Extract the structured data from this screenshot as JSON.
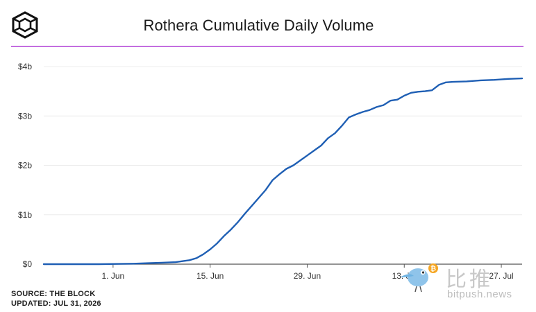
{
  "header": {
    "title": "Rothera Cumulative Daily Volume"
  },
  "colors": {
    "line": "#1f5fb4",
    "accent_rule": "#c36ee0",
    "grid": "#ececec",
    "axis": "#555555",
    "text": "#333333"
  },
  "footer": {
    "source": "SOURCE: THE BLOCK",
    "updated": "UPDATED: JUL 31, 2026"
  },
  "watermark": {
    "chinese": "比推",
    "site": "bitpush.news"
  },
  "chart_data": {
    "type": "line",
    "title": "Rothera Cumulative Daily Volume",
    "xlabel": "",
    "ylabel": "",
    "x_axis": {
      "type": "date",
      "range": [
        "2026-05-22",
        "2026-07-30"
      ],
      "ticks": [
        {
          "date": "2026-06-01",
          "label": "1. Jun"
        },
        {
          "date": "2026-06-15",
          "label": "15. Jun"
        },
        {
          "date": "2026-06-29",
          "label": "29. Jun"
        },
        {
          "date": "2026-07-13",
          "label": "13. Jul"
        },
        {
          "date": "2026-07-27",
          "label": "27. Jul"
        }
      ]
    },
    "y_axis": {
      "ylim": [
        0,
        4
      ],
      "unit": "billion USD",
      "ticks": [
        {
          "value": 0,
          "label": "$0"
        },
        {
          "value": 1,
          "label": "$1b"
        },
        {
          "value": 2,
          "label": "$2b"
        },
        {
          "value": 3,
          "label": "$3b"
        },
        {
          "value": 4,
          "label": "$4b"
        }
      ]
    },
    "grid": true,
    "legend": "none",
    "series": [
      {
        "points": [
          [
            "2026-05-22",
            0.0
          ],
          [
            "2026-05-26",
            0.0
          ],
          [
            "2026-05-30",
            0.0
          ],
          [
            "2026-06-02",
            0.005
          ],
          [
            "2026-06-04",
            0.01
          ],
          [
            "2026-06-06",
            0.02
          ],
          [
            "2026-06-08",
            0.03
          ],
          [
            "2026-06-10",
            0.04
          ],
          [
            "2026-06-11",
            0.06
          ],
          [
            "2026-06-12",
            0.08
          ],
          [
            "2026-06-13",
            0.12
          ],
          [
            "2026-06-14",
            0.2
          ],
          [
            "2026-06-15",
            0.3
          ],
          [
            "2026-06-16",
            0.42
          ],
          [
            "2026-06-17",
            0.57
          ],
          [
            "2026-06-18",
            0.7
          ],
          [
            "2026-06-19",
            0.85
          ],
          [
            "2026-06-20",
            1.02
          ],
          [
            "2026-06-21",
            1.18
          ],
          [
            "2026-06-22",
            1.34
          ],
          [
            "2026-06-23",
            1.5
          ],
          [
            "2026-06-24",
            1.7
          ],
          [
            "2026-06-25",
            1.82
          ],
          [
            "2026-06-26",
            1.93
          ],
          [
            "2026-06-27",
            2.0
          ],
          [
            "2026-06-28",
            2.1
          ],
          [
            "2026-06-29",
            2.2
          ],
          [
            "2026-06-30",
            2.3
          ],
          [
            "2026-07-01",
            2.4
          ],
          [
            "2026-07-02",
            2.55
          ],
          [
            "2026-07-03",
            2.65
          ],
          [
            "2026-07-04",
            2.8
          ],
          [
            "2026-07-05",
            2.97
          ],
          [
            "2026-07-06",
            3.03
          ],
          [
            "2026-07-07",
            3.08
          ],
          [
            "2026-07-08",
            3.12
          ],
          [
            "2026-07-09",
            3.18
          ],
          [
            "2026-07-10",
            3.22
          ],
          [
            "2026-07-11",
            3.31
          ],
          [
            "2026-07-12",
            3.33
          ],
          [
            "2026-07-13",
            3.41
          ],
          [
            "2026-07-14",
            3.47
          ],
          [
            "2026-07-15",
            3.49
          ],
          [
            "2026-07-16",
            3.5
          ],
          [
            "2026-07-17",
            3.52
          ],
          [
            "2026-07-18",
            3.63
          ],
          [
            "2026-07-19",
            3.68
          ],
          [
            "2026-07-20",
            3.69
          ],
          [
            "2026-07-22",
            3.7
          ],
          [
            "2026-07-24",
            3.72
          ],
          [
            "2026-07-26",
            3.73
          ],
          [
            "2026-07-28",
            3.75
          ],
          [
            "2026-07-30",
            3.76
          ]
        ]
      }
    ]
  }
}
